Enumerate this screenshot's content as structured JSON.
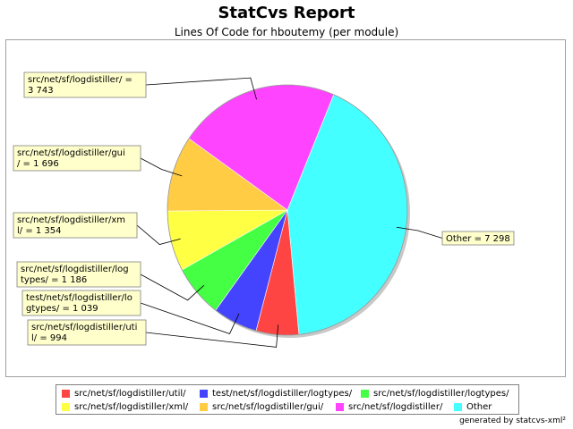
{
  "chart_data": {
    "type": "pie",
    "title": "StatCvs Report",
    "subtitle": "Lines Of Code for hboutemy (per module)",
    "slices": [
      {
        "name": "Other",
        "value": 7298,
        "color": "#44ffff",
        "label": [
          "Other = 7 298"
        ]
      },
      {
        "name": "src/net/sf/logdistiller/util/",
        "value": 994,
        "color": "#ff4444",
        "label": [
          "src/net/sf/logdistiller/uti",
          "l/ = 994"
        ]
      },
      {
        "name": "test/net/sf/logdistiller/logtypes/",
        "value": 1039,
        "color": "#4444ff",
        "label": [
          "test/net/sf/logdistiller/lo",
          "gtypes/ = 1 039"
        ]
      },
      {
        "name": "src/net/sf/logdistiller/logtypes/",
        "value": 1186,
        "color": "#44ff44",
        "label": [
          "src/net/sf/logdistiller/log",
          "types/ = 1 186"
        ]
      },
      {
        "name": "src/net/sf/logdistiller/xml/",
        "value": 1354,
        "color": "#ffff44",
        "label": [
          "src/net/sf/logdistiller/xm",
          "l/ = 1 354"
        ]
      },
      {
        "name": "src/net/sf/logdistiller/gui/",
        "value": 1696,
        "color": "#ffcc44",
        "label": [
          "src/net/sf/logdistiller/gui",
          "/ = 1 696"
        ]
      },
      {
        "name": "src/net/sf/logdistiller/",
        "value": 3743,
        "color": "#ff44ff",
        "label": [
          "src/net/sf/logdistiller/ =",
          "3 743"
        ]
      }
    ],
    "legend": {
      "placement": "bottom",
      "items": [
        {
          "name": "src/net/sf/logdistiller/util/",
          "color": "#ff4444"
        },
        {
          "name": "test/net/sf/logdistiller/logtypes/",
          "color": "#4444ff"
        },
        {
          "name": "src/net/sf/logdistiller/logtypes/",
          "color": "#44ff44"
        },
        {
          "name": "src/net/sf/logdistiller/xml/",
          "color": "#ffff44"
        },
        {
          "name": "src/net/sf/logdistiller/gui/",
          "color": "#ffcc44"
        },
        {
          "name": "src/net/sf/logdistiller/",
          "color": "#ff44ff"
        },
        {
          "name": "Other",
          "color": "#44ffff"
        }
      ]
    }
  },
  "footer": "generated by statcvs-xml²"
}
